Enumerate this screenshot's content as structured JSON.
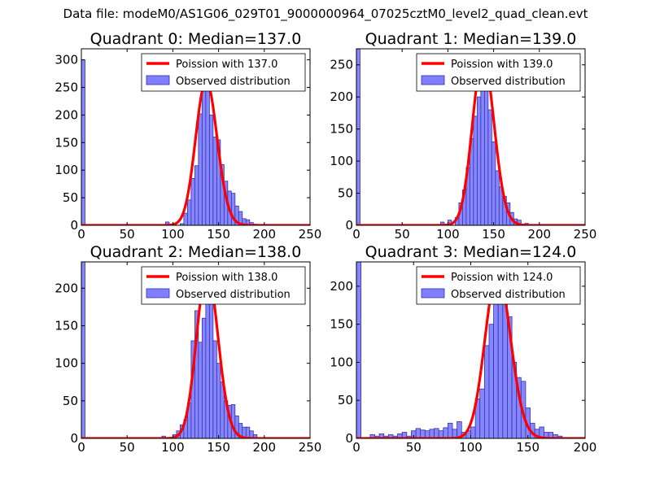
{
  "suptitle": "Data file: modeM0/AS1G06_029T01_9000000964_07025cztM0_level2_quad_clean.evt",
  "colors": {
    "poisson": "#ff0000",
    "bar_fill": "#7f7fff",
    "bar_edge": "#3333aa"
  },
  "chart_data": [
    {
      "type": "bar",
      "title": "Quadrant 0: Median=137.0",
      "xlim": [
        0,
        250
      ],
      "ylim": [
        0,
        320
      ],
      "xticks": [
        0,
        50,
        100,
        150,
        200,
        250
      ],
      "yticks": [
        0,
        50,
        100,
        150,
        200,
        250,
        300
      ],
      "legend": [
        "Poission with 137.0",
        "Observed distribution"
      ],
      "median": 137.0,
      "peak": 262,
      "bin_width": 4,
      "bins": [
        [
          0,
          300
        ],
        [
          92,
          6
        ],
        [
          100,
          4
        ],
        [
          108,
          3
        ],
        [
          112,
          22
        ],
        [
          116,
          46
        ],
        [
          120,
          85
        ],
        [
          124,
          108
        ],
        [
          128,
          202
        ],
        [
          132,
          245
        ],
        [
          136,
          250
        ],
        [
          140,
          200
        ],
        [
          144,
          160
        ],
        [
          148,
          155
        ],
        [
          152,
          110
        ],
        [
          156,
          80
        ],
        [
          160,
          62
        ],
        [
          164,
          58
        ],
        [
          168,
          35
        ],
        [
          172,
          25
        ],
        [
          176,
          12
        ],
        [
          180,
          10
        ],
        [
          184,
          5
        ],
        [
          188,
          2
        ]
      ]
    },
    {
      "type": "bar",
      "title": "Quadrant 1: Median=139.0",
      "xlim": [
        0,
        250
      ],
      "ylim": [
        0,
        275
      ],
      "xticks": [
        0,
        50,
        100,
        150,
        200,
        250
      ],
      "yticks": [
        0,
        50,
        100,
        150,
        200,
        250
      ],
      "legend": [
        "Poission with 139.0",
        "Observed distribution"
      ],
      "median": 139.0,
      "peak": 262,
      "bin_width": 4,
      "bins": [
        [
          0,
          275
        ],
        [
          92,
          5
        ],
        [
          100,
          8
        ],
        [
          108,
          12
        ],
        [
          112,
          35
        ],
        [
          116,
          55
        ],
        [
          120,
          90
        ],
        [
          124,
          135
        ],
        [
          128,
          170
        ],
        [
          132,
          200
        ],
        [
          136,
          255
        ],
        [
          140,
          215
        ],
        [
          144,
          180
        ],
        [
          148,
          130
        ],
        [
          152,
          85
        ],
        [
          156,
          60
        ],
        [
          160,
          45
        ],
        [
          164,
          35
        ],
        [
          168,
          20
        ],
        [
          172,
          10
        ],
        [
          176,
          8
        ],
        [
          184,
          3
        ]
      ]
    },
    {
      "type": "bar",
      "title": "Quadrant 2: Median=138.0",
      "xlim": [
        0,
        250
      ],
      "ylim": [
        0,
        235
      ],
      "xticks": [
        0,
        50,
        100,
        150,
        200,
        250
      ],
      "yticks": [
        0,
        50,
        100,
        150,
        200
      ],
      "legend": [
        "Poission with 138.0",
        "Observed distribution"
      ],
      "median": 138.0,
      "peak": 223,
      "bin_width": 4,
      "bins": [
        [
          0,
          235
        ],
        [
          88,
          3
        ],
        [
          100,
          5
        ],
        [
          104,
          10
        ],
        [
          108,
          18
        ],
        [
          112,
          25
        ],
        [
          116,
          47
        ],
        [
          120,
          130
        ],
        [
          124,
          170
        ],
        [
          128,
          128
        ],
        [
          132,
          160
        ],
        [
          136,
          210
        ],
        [
          140,
          200
        ],
        [
          144,
          130
        ],
        [
          148,
          100
        ],
        [
          152,
          75
        ],
        [
          156,
          50
        ],
        [
          160,
          44
        ],
        [
          164,
          45
        ],
        [
          168,
          30
        ],
        [
          172,
          20
        ],
        [
          176,
          15
        ],
        [
          180,
          15
        ],
        [
          184,
          10
        ],
        [
          188,
          5
        ]
      ]
    },
    {
      "type": "bar",
      "title": "Quadrant 3: Median=124.0",
      "xlim": [
        0,
        200
      ],
      "ylim": [
        0,
        232
      ],
      "xticks": [
        0,
        50,
        100,
        150,
        200
      ],
      "yticks": [
        0,
        50,
        100,
        150,
        200
      ],
      "legend": [
        "Poission with 124.0",
        "Observed distribution"
      ],
      "median": 124.0,
      "peak": 218,
      "bin_width": 4,
      "bins": [
        [
          0,
          232
        ],
        [
          12,
          5
        ],
        [
          16,
          3
        ],
        [
          20,
          6
        ],
        [
          24,
          3
        ],
        [
          28,
          5
        ],
        [
          32,
          3
        ],
        [
          36,
          6
        ],
        [
          40,
          8
        ],
        [
          44,
          3
        ],
        [
          48,
          10
        ],
        [
          52,
          13
        ],
        [
          56,
          11
        ],
        [
          60,
          10
        ],
        [
          64,
          12
        ],
        [
          68,
          13
        ],
        [
          72,
          10
        ],
        [
          76,
          14
        ],
        [
          80,
          20
        ],
        [
          84,
          12
        ],
        [
          88,
          22
        ],
        [
          92,
          8
        ],
        [
          96,
          10
        ],
        [
          100,
          15
        ],
        [
          104,
          52
        ],
        [
          108,
          65
        ],
        [
          112,
          122
        ],
        [
          116,
          150
        ],
        [
          120,
          220
        ],
        [
          124,
          190
        ],
        [
          128,
          180
        ],
        [
          132,
          160
        ],
        [
          136,
          100
        ],
        [
          140,
          80
        ],
        [
          144,
          75
        ],
        [
          148,
          40
        ],
        [
          152,
          20
        ],
        [
          156,
          12
        ],
        [
          160,
          15
        ],
        [
          164,
          8
        ],
        [
          168,
          8
        ],
        [
          172,
          5
        ],
        [
          176,
          3
        ]
      ]
    }
  ]
}
